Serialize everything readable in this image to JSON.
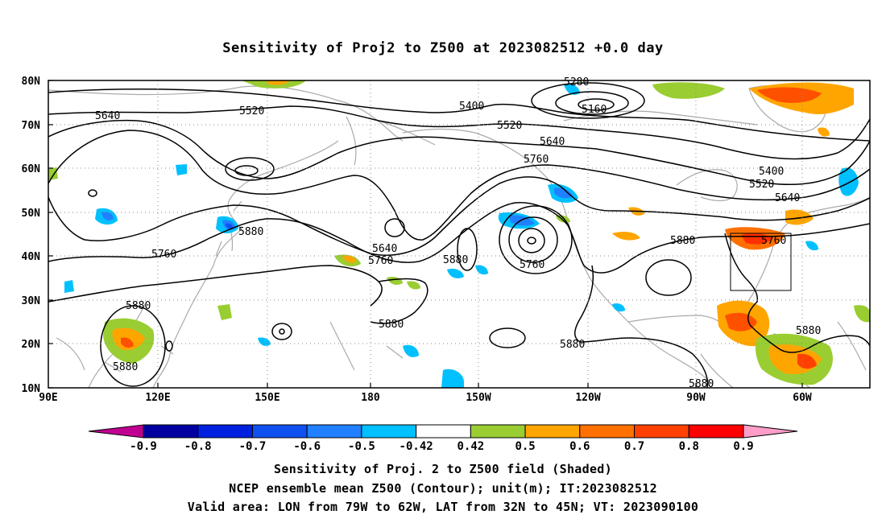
{
  "title": "Sensitivity of Proj2 to Z500 at 2023082512 +0.0 day",
  "map": {
    "lat_labels": [
      "80N",
      "70N",
      "60N",
      "50N",
      "40N",
      "30N",
      "20N",
      "10N"
    ],
    "lon_labels": [
      "90E",
      "120E",
      "150E",
      "180",
      "150W",
      "120W",
      "90W",
      "60W"
    ],
    "contour_labels": [
      {
        "text": "5640"
      },
      {
        "text": "5520"
      },
      {
        "text": "5400"
      },
      {
        "text": "5280"
      },
      {
        "text": "5160"
      },
      {
        "text": "5520"
      },
      {
        "text": "5640"
      },
      {
        "text": "5760"
      },
      {
        "text": "5400"
      },
      {
        "text": "5520"
      },
      {
        "text": "5640"
      },
      {
        "text": "5880"
      },
      {
        "text": "5760"
      },
      {
        "text": "5640"
      },
      {
        "text": "5760"
      },
      {
        "text": "5880"
      },
      {
        "text": "5760"
      },
      {
        "text": "5880"
      },
      {
        "text": "5760"
      },
      {
        "text": "5880"
      },
      {
        "text": "5880"
      },
      {
        "text": "5880"
      },
      {
        "text": "5880"
      },
      {
        "text": "5880"
      },
      {
        "text": "5880"
      }
    ],
    "valid_box": {
      "lon_from": "79W",
      "lon_to": "62W",
      "lat_from": "32N",
      "lat_to": "45N"
    }
  },
  "colorbar": {
    "labels": [
      "-0.9",
      "-0.8",
      "-0.7",
      "-0.6",
      "-0.5",
      "-0.42",
      "0.42",
      "0.5",
      "0.6",
      "0.7",
      "0.8",
      "0.9"
    ],
    "colors": [
      "#0000a0",
      "#0020e0",
      "#1050f0",
      "#2080ff",
      "#00c0ff",
      "#ffffff",
      "#9acd32",
      "#ffa500",
      "#ff7000",
      "#ff4000",
      "#ff0000"
    ],
    "left_arrow_color": "#c00090",
    "right_arrow_color": "#ff9ec8"
  },
  "caption": {
    "line1": "Sensitivity of Proj. 2 to Z500 field (Shaded)",
    "line2": "NCEP ensemble mean Z500 (Contour); unit(m); IT:2023082512",
    "line3": "Valid area: LON from 79W to 62W, LAT from 32N to 45N; VT: 2023090100"
  }
}
